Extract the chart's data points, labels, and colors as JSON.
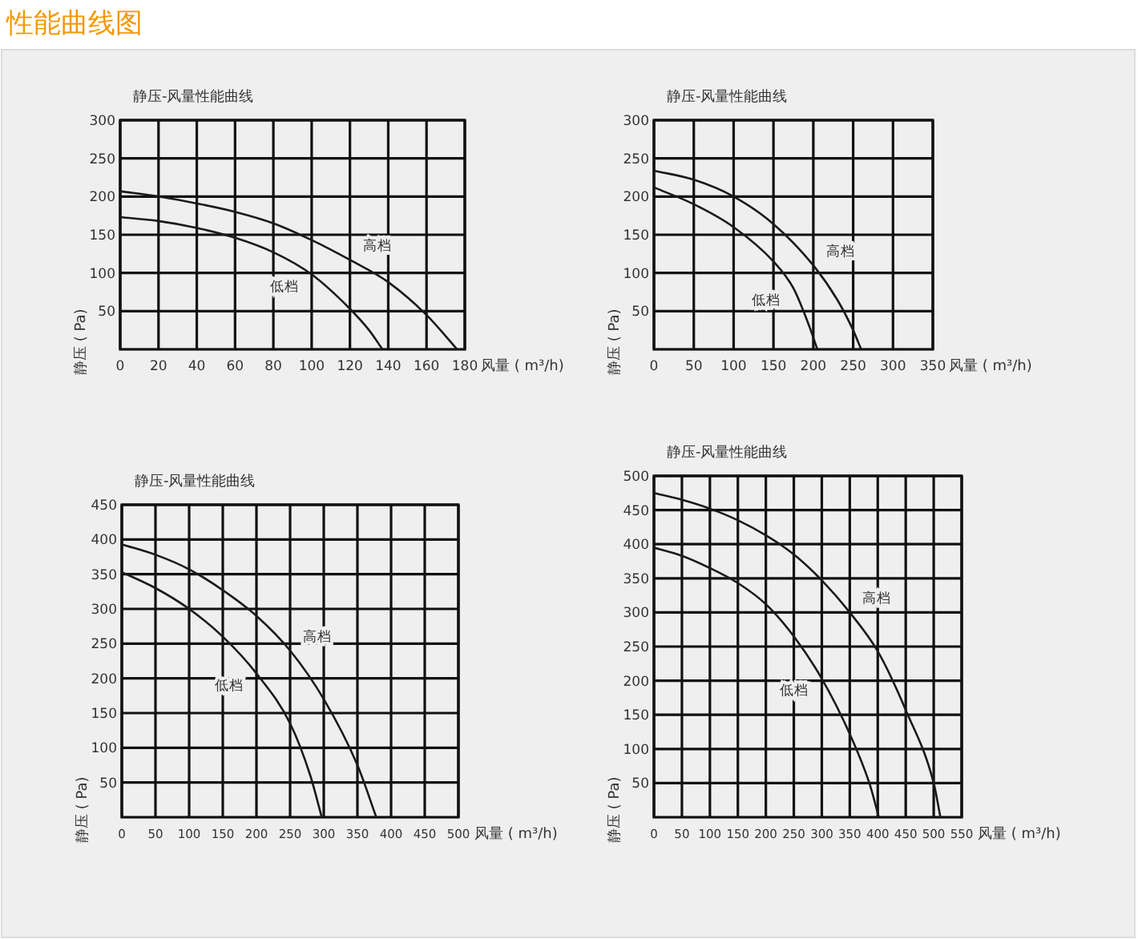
{
  "chart_data": [
    {
      "type": "line",
      "title": "静压-风量性能曲线",
      "annotations": [
        "性能曲线图"
      ],
      "xlabel": "风量 ( m³/h)",
      "ylabel": "静压 ( Pa)",
      "xlim": [
        0,
        180
      ],
      "ylim": [
        0,
        300
      ],
      "xticks": [
        0,
        20,
        40,
        60,
        80,
        100,
        120,
        140,
        160,
        180
      ],
      "yticks": [
        50,
        100,
        150,
        200,
        250,
        300
      ],
      "grid": true,
      "series": [
        {
          "name": "高档",
          "color": "#1a1a1a",
          "x": [
            0,
            20,
            40,
            60,
            80,
            100,
            120,
            140,
            160,
            176
          ],
          "values": [
            207,
            200,
            191,
            180,
            165,
            143,
            117,
            88,
            45,
            0
          ]
        },
        {
          "name": "低档",
          "color": "#1a1a1a",
          "x": [
            0,
            20,
            40,
            60,
            80,
            100,
            120,
            130,
            137
          ],
          "values": [
            173,
            168,
            159,
            146,
            127,
            98,
            53,
            25,
            0
          ]
        }
      ]
    },
    {
      "type": "line",
      "title": "静压-风量性能曲线",
      "xlabel": "风量 ( m³/h)",
      "ylabel": "静压 ( Pa)",
      "xlim": [
        0,
        350
      ],
      "ylim": [
        0,
        300
      ],
      "xticks": [
        0,
        50,
        100,
        150,
        200,
        250,
        300,
        350
      ],
      "yticks": [
        50,
        100,
        150,
        200,
        250,
        300
      ],
      "grid": true,
      "series": [
        {
          "name": "高档",
          "color": "#1a1a1a",
          "x": [
            0,
            50,
            100,
            150,
            200,
            230,
            250,
            260
          ],
          "values": [
            234,
            222,
            200,
            164,
            110,
            65,
            25,
            0
          ]
        },
        {
          "name": "低档",
          "color": "#1a1a1a",
          "x": [
            0,
            50,
            100,
            150,
            175,
            195,
            205
          ],
          "values": [
            212,
            190,
            160,
            115,
            80,
            30,
            0
          ]
        }
      ]
    },
    {
      "type": "line",
      "title": "静压-风量性能曲线",
      "xlabel": "风量 ( m³/h)",
      "ylabel": "静压 ( Pa)",
      "xlim": [
        0,
        500
      ],
      "ylim": [
        0,
        450
      ],
      "xticks": [
        0,
        50,
        100,
        150,
        200,
        250,
        300,
        350,
        400,
        450,
        500
      ],
      "yticks": [
        50,
        100,
        150,
        200,
        250,
        300,
        350,
        400,
        450
      ],
      "grid": true,
      "series": [
        {
          "name": "高档",
          "color": "#1a1a1a",
          "x": [
            0,
            50,
            100,
            150,
            200,
            250,
            300,
            350,
            378
          ],
          "values": [
            393,
            378,
            357,
            327,
            290,
            240,
            170,
            75,
            0
          ]
        },
        {
          "name": "低档",
          "color": "#1a1a1a",
          "x": [
            0,
            50,
            100,
            150,
            200,
            250,
            280,
            297
          ],
          "values": [
            353,
            330,
            300,
            260,
            207,
            135,
            60,
            0
          ]
        }
      ]
    },
    {
      "type": "line",
      "title": "静压-风量性能曲线",
      "xlabel": "风量 ( m³/h)",
      "ylabel": "静压 ( Pa)",
      "xlim": [
        0,
        550
      ],
      "ylim": [
        0,
        500
      ],
      "xticks": [
        0,
        50,
        100,
        150,
        200,
        250,
        300,
        350,
        400,
        450,
        500,
        550
      ],
      "yticks": [
        50,
        100,
        150,
        200,
        250,
        300,
        350,
        400,
        450,
        500
      ],
      "grid": true,
      "series": [
        {
          "name": "高档",
          "color": "#1a1a1a",
          "x": [
            0,
            50,
            100,
            150,
            200,
            250,
            300,
            350,
            400,
            450,
            500,
            512
          ],
          "values": [
            475,
            465,
            452,
            435,
            413,
            385,
            347,
            300,
            243,
            157,
            50,
            0
          ]
        },
        {
          "name": "低档",
          "color": "#1a1a1a",
          "x": [
            0,
            50,
            100,
            150,
            200,
            250,
            300,
            350,
            385,
            402
          ],
          "values": [
            395,
            383,
            365,
            343,
            312,
            265,
            203,
            122,
            50,
            0
          ]
        }
      ]
    }
  ]
}
